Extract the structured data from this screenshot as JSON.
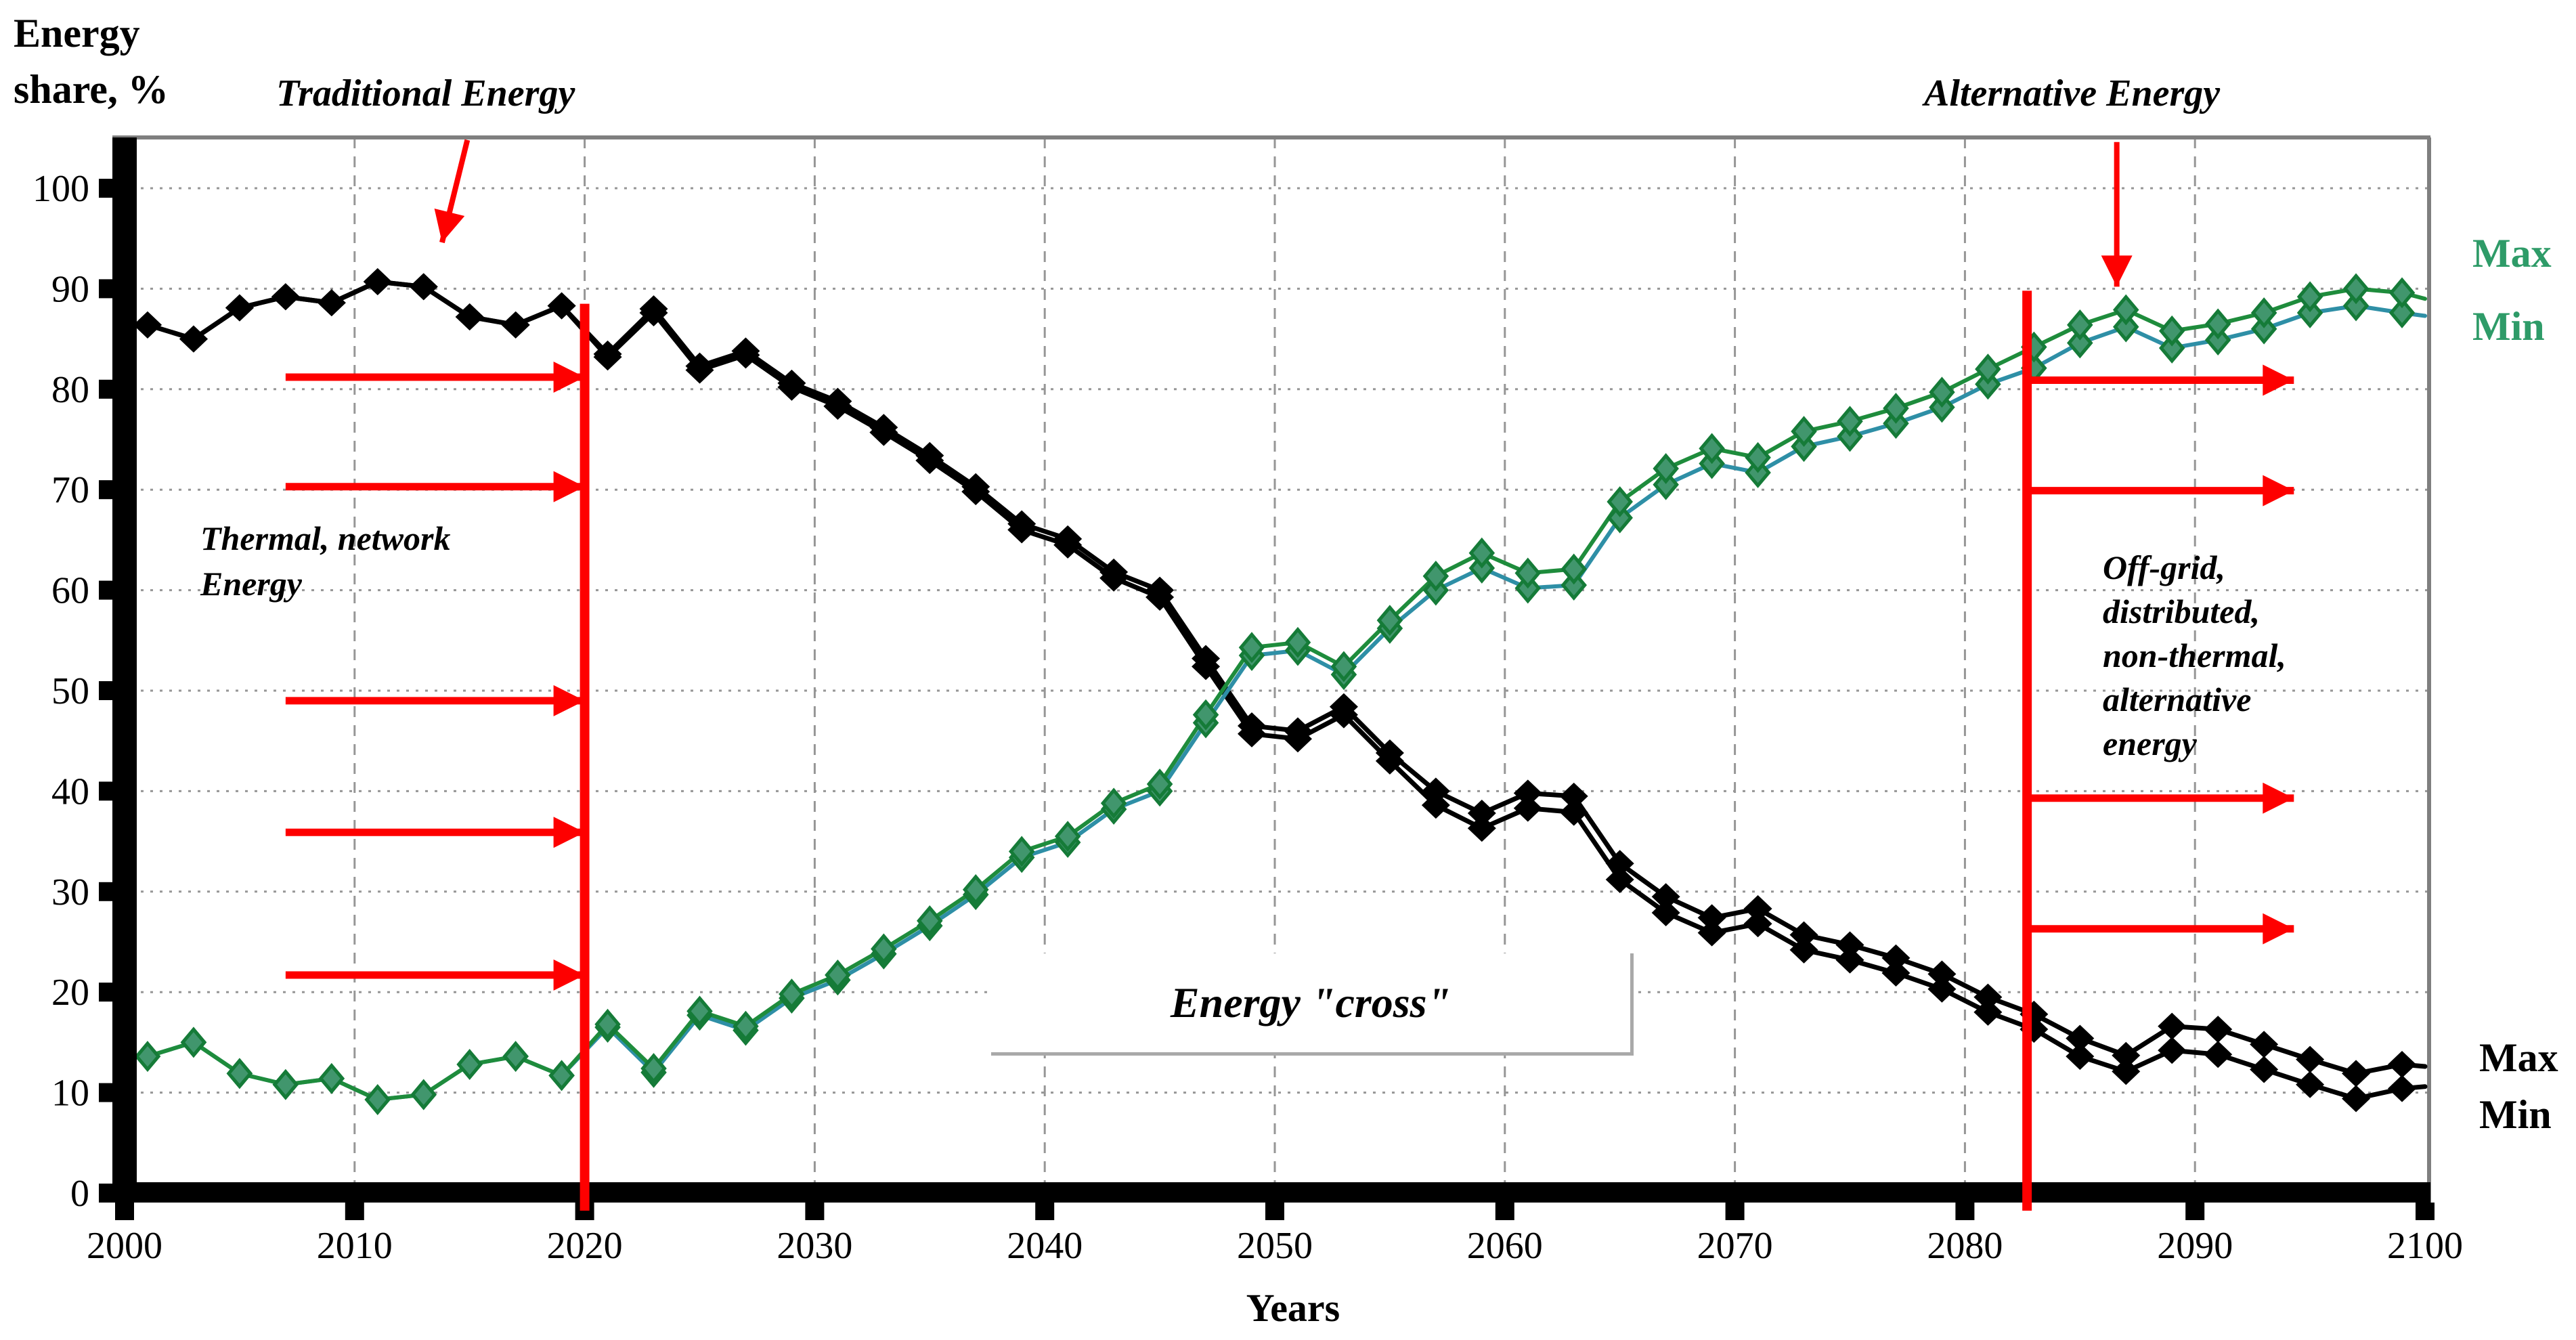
{
  "title": {
    "line1": "Energy",
    "line2": "share, %"
  },
  "x_axis_label": "Years",
  "labels": {
    "traditional": "Traditional Energy",
    "alternative": "Alternative Energy",
    "cross": "Energy \"cross\"",
    "green_max": "Max",
    "green_min": "Min",
    "black_max": "Max",
    "black_min": "Min",
    "thermal_lines": [
      "Thermal, network",
      "Energy"
    ],
    "offgrid_lines": [
      "Off-grid,",
      "distributed,",
      "non-thermal,",
      "alternative",
      "energy"
    ]
  },
  "colors": {
    "red": "#fe0000",
    "black_series": "#000000",
    "green_max_line": "#1e8c3c",
    "green_min_line": "#2e8fa6",
    "green_marker_fill": "#41966d",
    "green_marker_stroke": "#157b38",
    "green_label": "#2e9b68",
    "grid": "#969696",
    "border": "#7f7f7f",
    "callout_border": "#a9a9a9"
  },
  "chart_data": {
    "type": "line",
    "title": "",
    "xlabel": "Years",
    "ylabel": "Energy share, %",
    "xlim": [
      2000,
      2100
    ],
    "ylim": [
      0,
      100
    ],
    "x_ticks": [
      2000,
      2010,
      2020,
      2030,
      2040,
      2050,
      2060,
      2070,
      2080,
      2090,
      2100
    ],
    "y_ticks": [
      0,
      10,
      20,
      30,
      40,
      50,
      60,
      70,
      80,
      90,
      100
    ],
    "grid": "on",
    "x": [
      2001,
      2003,
      2005,
      2007,
      2009,
      2011,
      2013,
      2015,
      2017,
      2019,
      2021,
      2023,
      2025,
      2027,
      2029,
      2031,
      2033,
      2035,
      2037,
      2039,
      2041,
      2043,
      2045,
      2047,
      2049,
      2051,
      2053,
      2055,
      2057,
      2059,
      2061,
      2063,
      2065,
      2067,
      2069,
      2071,
      2073,
      2075,
      2077,
      2079,
      2081,
      2083,
      2085,
      2087,
      2089,
      2091,
      2093,
      2095,
      2097,
      2099,
      2100
    ],
    "series": [
      {
        "name": "Traditional Energy Max",
        "color": "black",
        "values": [
          86.4,
          85.0,
          88.1,
          89.2,
          88.6,
          90.7,
          90.2,
          87.2,
          86.4,
          88.3,
          83.5,
          88.0,
          82.3,
          83.8,
          80.6,
          78.8,
          76.2,
          73.4,
          70.3,
          66.6,
          65.1,
          61.8,
          60.0,
          53.2,
          46.5,
          46.0,
          48.4,
          43.8,
          40.0,
          37.8,
          39.8,
          39.5,
          32.8,
          29.5,
          27.4,
          28.3,
          25.7,
          24.7,
          23.4,
          21.8,
          19.5,
          17.8,
          15.4,
          13.7,
          16.6,
          16.3,
          14.8,
          13.3,
          11.9,
          12.8,
          12.6
        ]
      },
      {
        "name": "Traditional Energy Min",
        "color": "black",
        "values": [
          86.4,
          85.0,
          88.1,
          89.2,
          88.6,
          90.7,
          90.2,
          87.2,
          86.4,
          88.3,
          83.2,
          87.6,
          81.9,
          83.4,
          80.2,
          78.3,
          75.7,
          72.9,
          69.8,
          66.0,
          64.5,
          61.2,
          59.3,
          52.4,
          45.7,
          45.2,
          47.6,
          43.0,
          38.6,
          36.3,
          38.3,
          37.9,
          31.2,
          27.9,
          25.9,
          26.8,
          24.2,
          23.2,
          21.9,
          20.3,
          18.0,
          16.3,
          13.6,
          12.1,
          14.2,
          13.8,
          12.3,
          10.8,
          9.4,
          10.4,
          10.6
        ]
      },
      {
        "name": "Alternative Energy Max",
        "color": "green",
        "values": [
          13.6,
          15.0,
          11.9,
          10.8,
          11.4,
          9.3,
          9.8,
          12.8,
          13.6,
          11.7,
          16.8,
          12.4,
          18.1,
          16.6,
          19.8,
          21.7,
          24.3,
          27.1,
          30.2,
          34.0,
          35.5,
          38.8,
          40.7,
          47.6,
          54.3,
          54.8,
          52.4,
          57.0,
          61.4,
          63.7,
          61.7,
          62.1,
          68.8,
          72.1,
          74.1,
          73.2,
          75.8,
          76.8,
          78.1,
          79.7,
          82.0,
          84.2,
          86.4,
          87.9,
          85.8,
          86.5,
          87.6,
          89.2,
          90.0,
          89.6,
          89.0
        ]
      },
      {
        "name": "Alternative Energy Min",
        "color": "teal",
        "values": [
          13.6,
          15.0,
          11.9,
          10.8,
          11.4,
          9.3,
          9.8,
          12.8,
          13.6,
          11.7,
          16.5,
          12.0,
          17.7,
          16.2,
          19.4,
          21.2,
          23.8,
          26.6,
          29.7,
          33.4,
          34.9,
          38.2,
          40.0,
          46.8,
          53.5,
          54.0,
          51.6,
          56.2,
          60.0,
          62.2,
          60.2,
          60.5,
          67.2,
          70.5,
          72.6,
          71.7,
          74.3,
          75.3,
          76.6,
          78.2,
          80.5,
          82.1,
          84.6,
          86.2,
          84.1,
          84.9,
          86.0,
          87.6,
          88.3,
          87.6,
          87.3
        ]
      }
    ],
    "annotations": {
      "red_vertical_lines": [
        {
          "year": 2020,
          "from": 0,
          "to": 88.5
        },
        {
          "year": 2082.7,
          "from": 0,
          "to": 89.8
        }
      ],
      "left_arrows": {
        "from_year": 2007,
        "to_year": 2020,
        "y_values": [
          81.2,
          70.3,
          49.0,
          35.9,
          21.7
        ]
      },
      "right_arrows": {
        "from_year": 2082.7,
        "to_year": 2094.3,
        "y_values": [
          80.9,
          69.9,
          39.3,
          26.3
        ]
      },
      "traditional_pointer": {
        "x1": 2014.9,
        "y1": 104.8,
        "x2": 2013.8,
        "y2": 94.6
      },
      "alternative_pointer": {
        "x1": 2086.6,
        "y1": 104.6,
        "x2": 2086.6,
        "y2": 90.2
      }
    },
    "legend_position": "right-edge-inline"
  }
}
